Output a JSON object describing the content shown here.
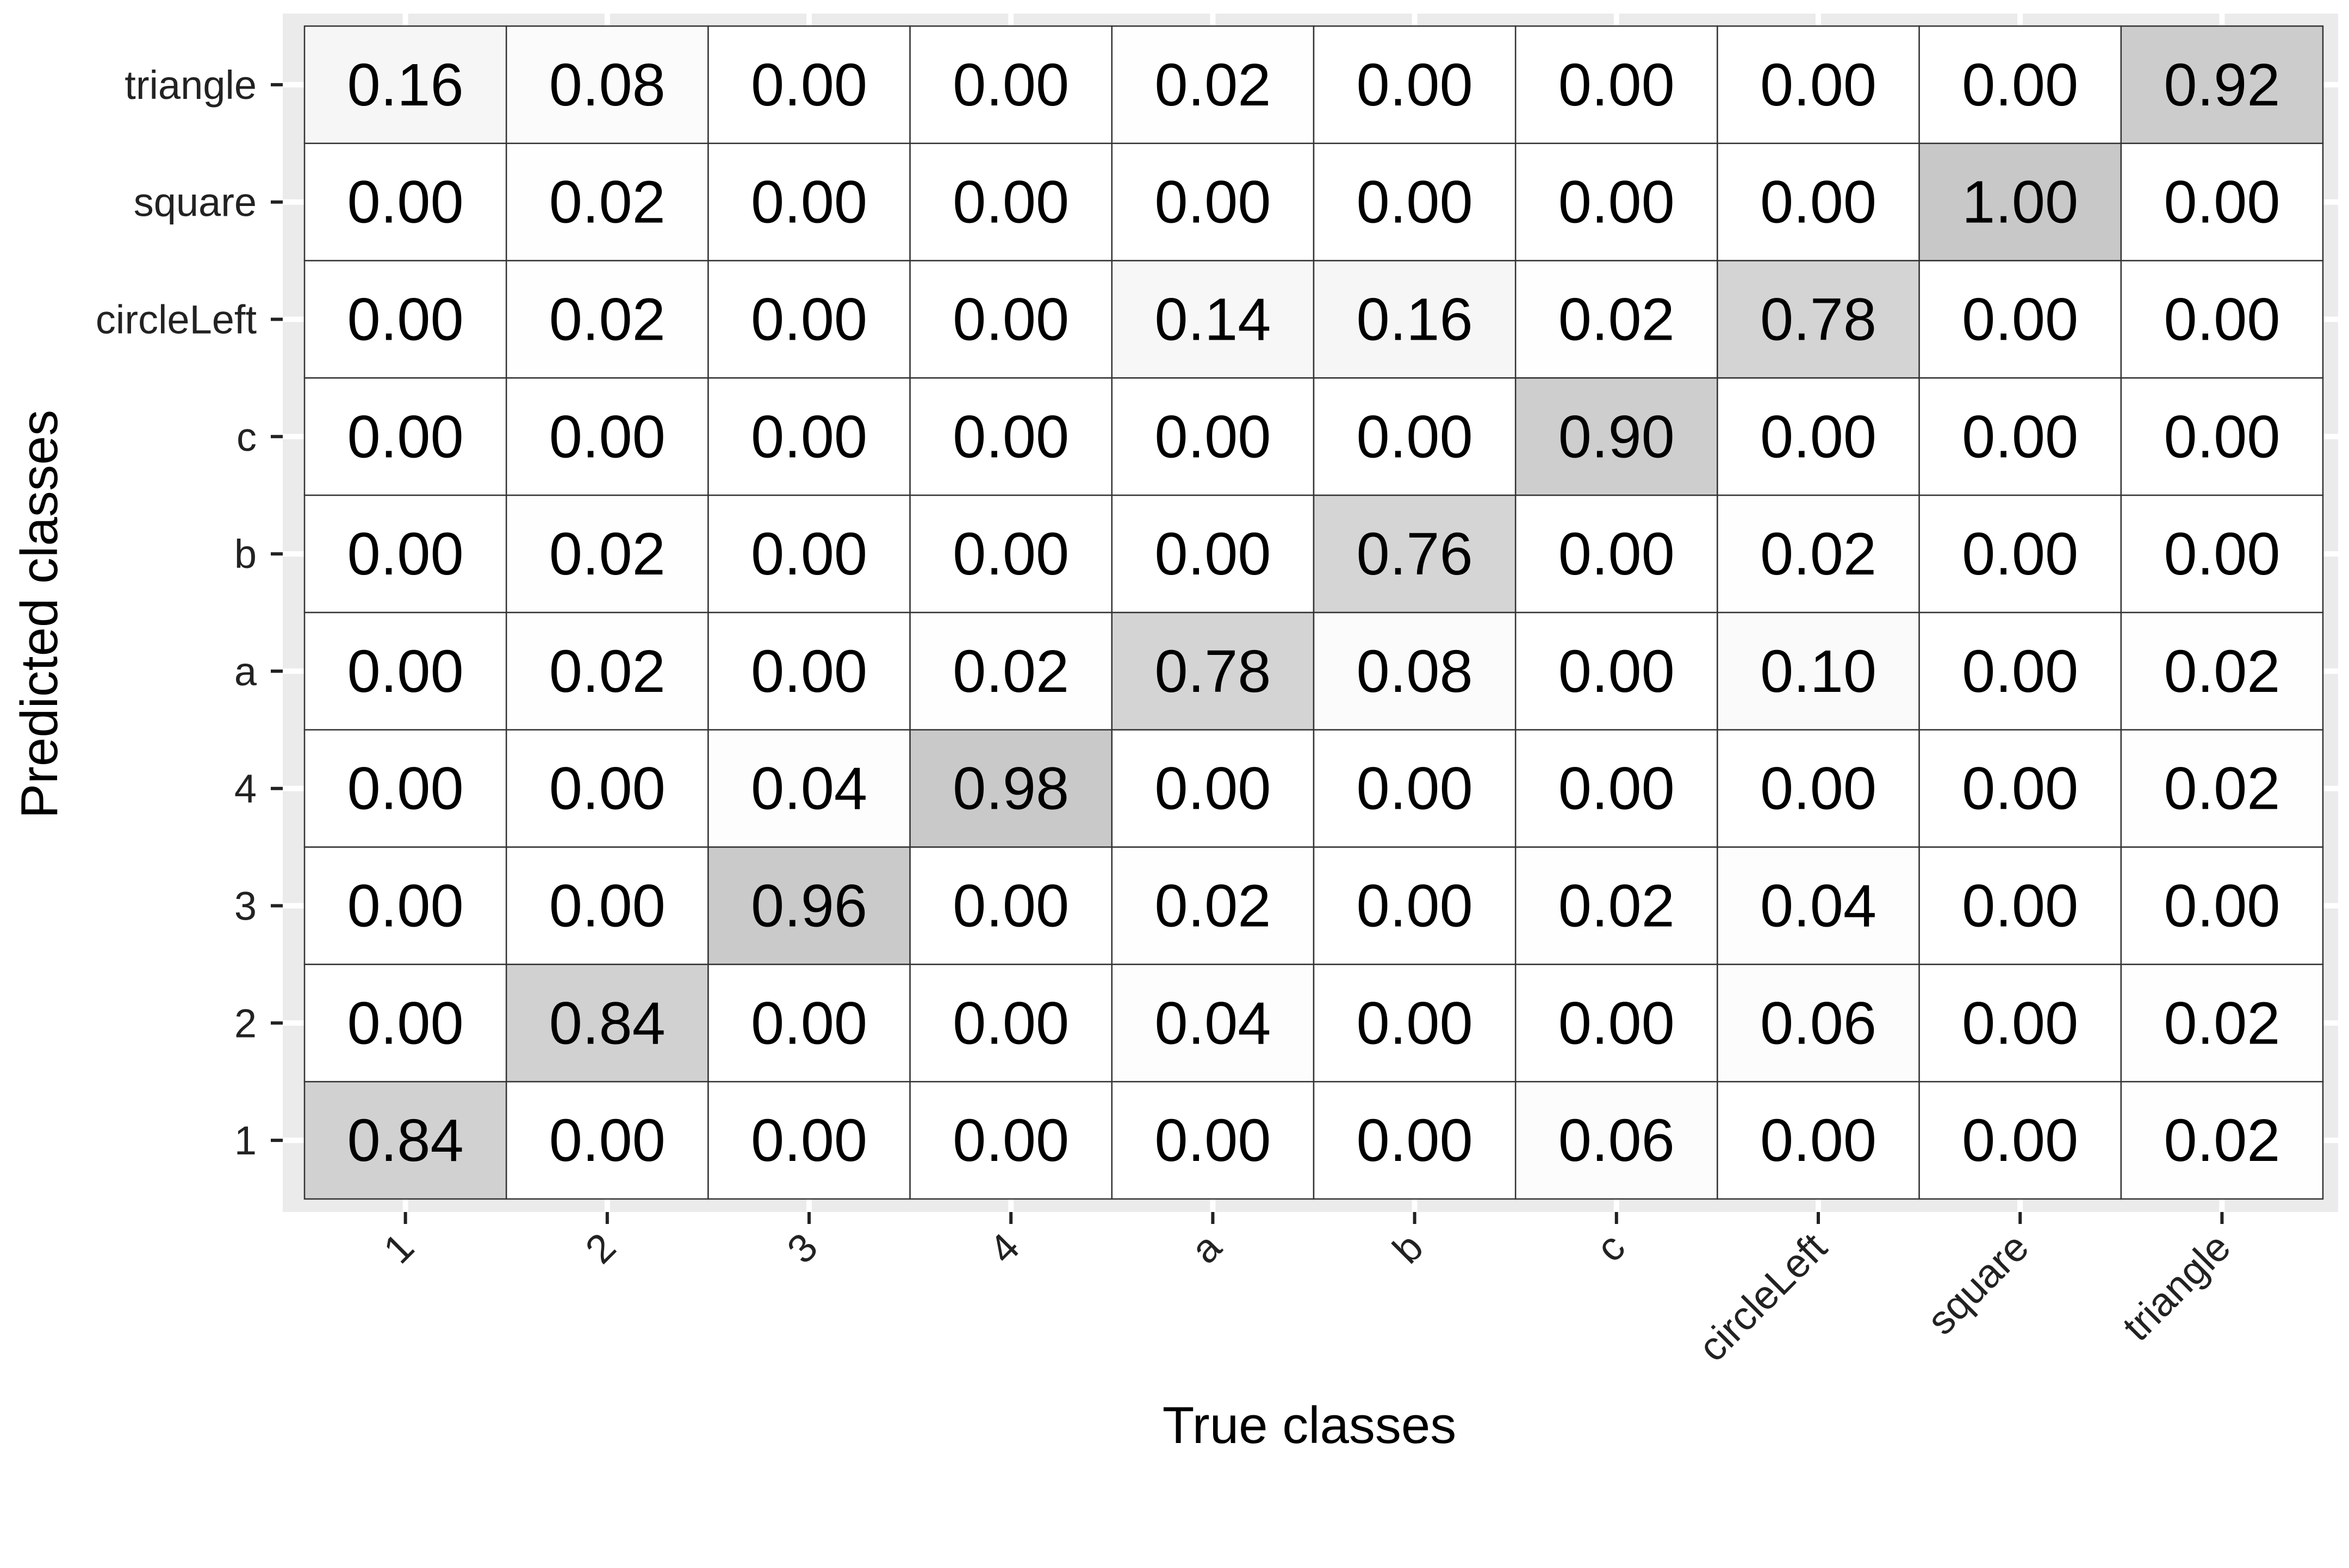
{
  "chart_data": {
    "type": "heatmap",
    "title": "",
    "xlabel": "True classes",
    "ylabel": "Predicted classes",
    "x_categories": [
      "1",
      "2",
      "3",
      "4",
      "a",
      "b",
      "c",
      "circleLeft",
      "square",
      "triangle"
    ],
    "y_categories": [
      "1",
      "2",
      "3",
      "4",
      "a",
      "b",
      "c",
      "circleLeft",
      "square",
      "triangle"
    ],
    "rows": [
      {
        "predicted": "triangle",
        "values": [
          0.16,
          0.08,
          0.0,
          0.0,
          0.02,
          0.0,
          0.0,
          0.0,
          0.0,
          0.92
        ]
      },
      {
        "predicted": "square",
        "values": [
          0.0,
          0.02,
          0.0,
          0.0,
          0.0,
          0.0,
          0.0,
          0.0,
          1.0,
          0.0
        ]
      },
      {
        "predicted": "circleLeft",
        "values": [
          0.0,
          0.02,
          0.0,
          0.0,
          0.14,
          0.16,
          0.02,
          0.78,
          0.0,
          0.0
        ]
      },
      {
        "predicted": "c",
        "values": [
          0.0,
          0.0,
          0.0,
          0.0,
          0.0,
          0.0,
          0.9,
          0.0,
          0.0,
          0.0
        ]
      },
      {
        "predicted": "b",
        "values": [
          0.0,
          0.02,
          0.0,
          0.0,
          0.0,
          0.76,
          0.0,
          0.02,
          0.0,
          0.0
        ]
      },
      {
        "predicted": "a",
        "values": [
          0.0,
          0.02,
          0.0,
          0.02,
          0.78,
          0.08,
          0.0,
          0.1,
          0.0,
          0.02
        ]
      },
      {
        "predicted": "4",
        "values": [
          0.0,
          0.0,
          0.04,
          0.98,
          0.0,
          0.0,
          0.0,
          0.0,
          0.0,
          0.02
        ]
      },
      {
        "predicted": "3",
        "values": [
          0.0,
          0.0,
          0.96,
          0.0,
          0.02,
          0.0,
          0.02,
          0.04,
          0.0,
          0.0
        ]
      },
      {
        "predicted": "2",
        "values": [
          0.0,
          0.84,
          0.0,
          0.0,
          0.04,
          0.0,
          0.0,
          0.06,
          0.0,
          0.02
        ]
      },
      {
        "predicted": "1",
        "values": [
          0.84,
          0.0,
          0.0,
          0.0,
          0.0,
          0.0,
          0.06,
          0.0,
          0.0,
          0.02
        ]
      }
    ],
    "fill_scale": {
      "low": "#ffffff",
      "high": "#c8c8c8"
    },
    "legend": "none"
  },
  "colors": {
    "panel_background": "#ebebeb",
    "cell_border": "#333333",
    "grid_line": "#ffffff",
    "text": "#000000",
    "axis_text": "#222222"
  }
}
